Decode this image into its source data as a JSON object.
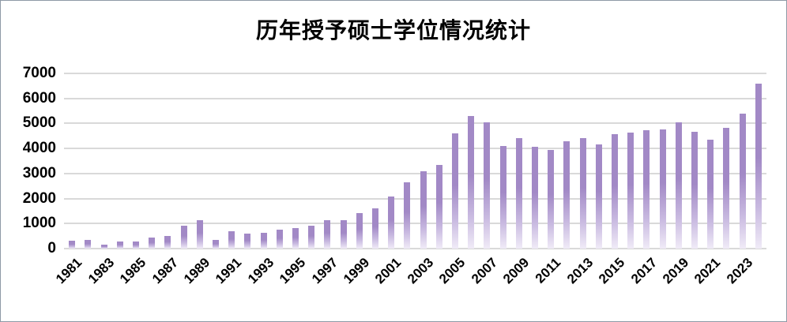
{
  "frame": {
    "border_color": "#8f9aa6",
    "background": "#ffffff"
  },
  "chart_data": {
    "type": "bar",
    "title": "历年授予硕士学位情况统计",
    "xlabel": "",
    "ylabel": "",
    "ylim": [
      0,
      7000
    ],
    "grid": "horizontal",
    "legend": "none",
    "gridline_color": "#d9d9d9",
    "bar_color_top": "#a289c6",
    "bar_color_mid": "#c8b9e0",
    "bar_color_bottom": "#f0ebf7",
    "yticks": [
      0,
      1000,
      2000,
      3000,
      4000,
      5000,
      6000,
      7000
    ],
    "ytick_labels": [
      "0",
      "1000",
      "2000",
      "3000",
      "4000",
      "5000",
      "6000",
      "7000"
    ],
    "x": [
      1981,
      1982,
      1983,
      1984,
      1985,
      1986,
      1987,
      1988,
      1989,
      1990,
      1991,
      1992,
      1993,
      1994,
      1995,
      1996,
      1997,
      1998,
      1999,
      2000,
      2001,
      2002,
      2003,
      2004,
      2005,
      2006,
      2007,
      2008,
      2009,
      2010,
      2011,
      2012,
      2013,
      2014,
      2015,
      2016,
      2017,
      2018,
      2019,
      2020,
      2021,
      2022,
      2023,
      2024
    ],
    "xtick_labels": [
      "1981",
      "1983",
      "1985",
      "1987",
      "1989",
      "1991",
      "1993",
      "1995",
      "1997",
      "1999",
      "2001",
      "2003",
      "2005",
      "2007",
      "2009",
      "2011",
      "2013",
      "2015",
      "2017",
      "2019",
      "2021",
      "2023"
    ],
    "values": [
      310,
      340,
      170,
      270,
      300,
      450,
      490,
      930,
      1120,
      350,
      690,
      600,
      640,
      760,
      820,
      900,
      1130,
      1130,
      1410,
      1620,
      2080,
      2660,
      3100,
      3340,
      4610,
      5300,
      5030,
      4100,
      4400,
      4070,
      3940,
      4290,
      4410,
      4150,
      4570,
      4620,
      4730,
      4750,
      5060,
      4660,
      4360,
      4810,
      5400,
      6590
    ]
  }
}
